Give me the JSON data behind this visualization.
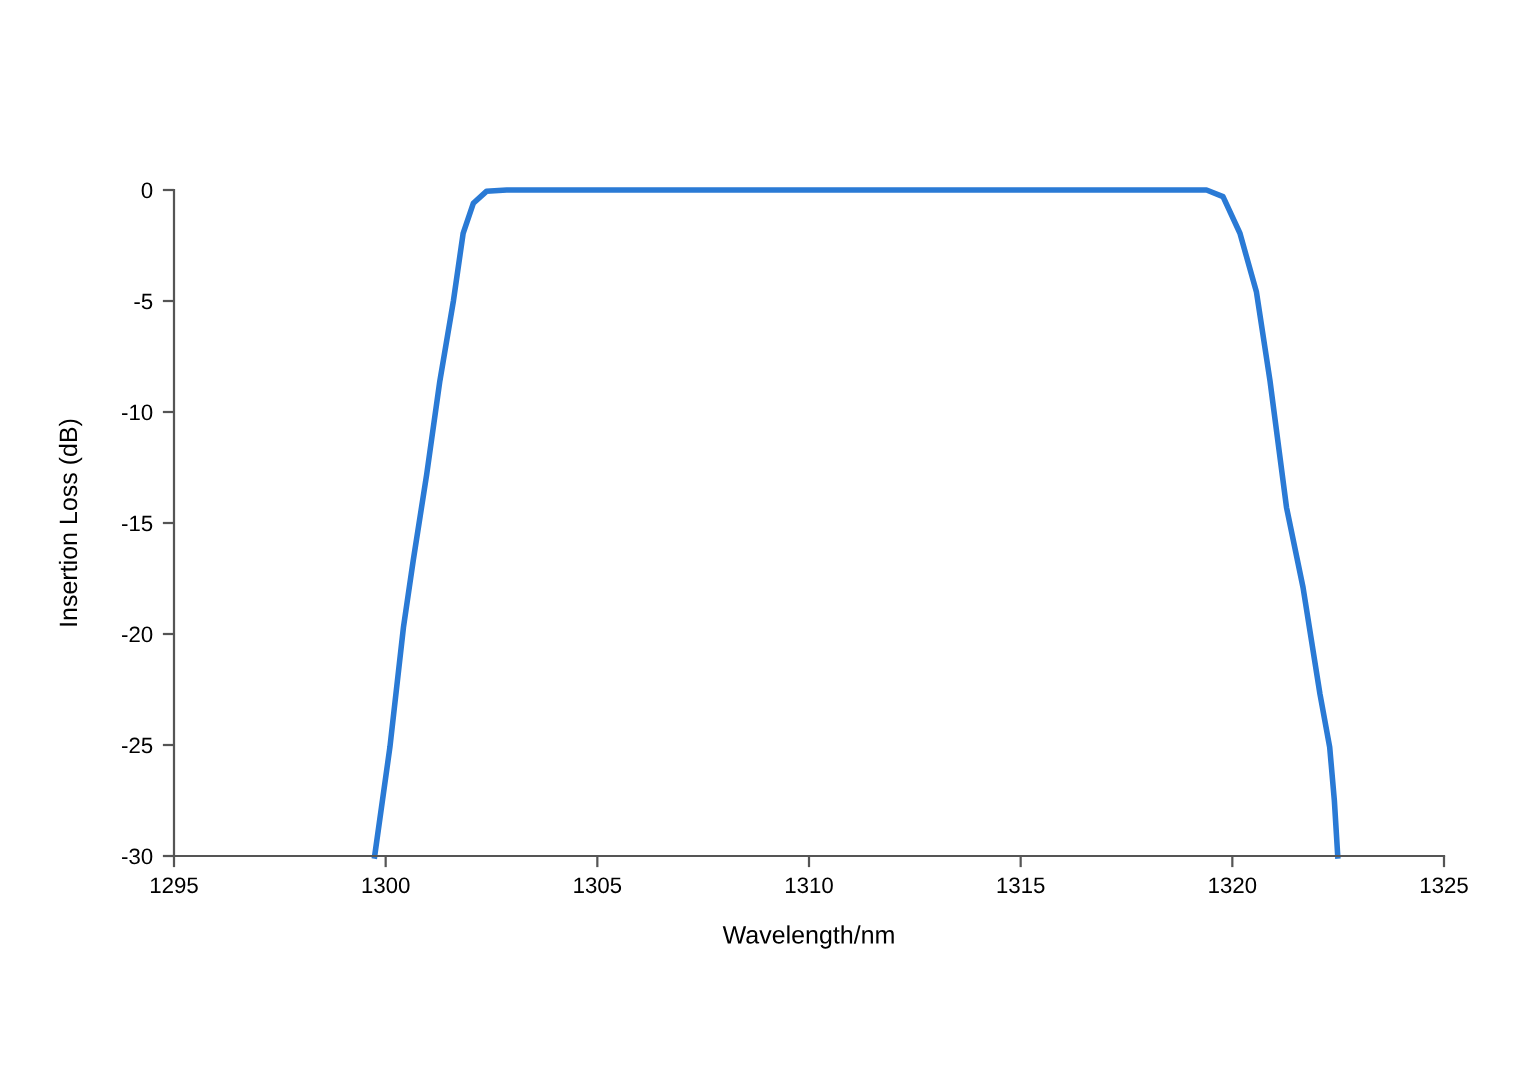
{
  "chart_data": {
    "type": "line",
    "xlabel": "Wavelength/nm",
    "ylabel": "Insertion Loss (dB)",
    "xlim": [
      1295,
      1325
    ],
    "xticks": [
      1295,
      1300,
      1305,
      1310,
      1315,
      1320,
      1325
    ],
    "ylim": [
      -30,
      0
    ],
    "yticks": [
      -30,
      -25,
      -20,
      -15,
      -10,
      -5,
      0
    ],
    "grid": false,
    "legend": false,
    "marker": "none",
    "line_style": "solid",
    "series": [
      {
        "color": "#2a7ad5",
        "x": [
          1299.74,
          1300.1,
          1300.42,
          1300.65,
          1300.97,
          1301.28,
          1301.6,
          1301.83,
          1302.07,
          1302.38,
          1302.86,
          1306,
          1310,
          1314,
          1318,
          1319.39,
          1319.78,
          1320.18,
          1320.57,
          1320.89,
          1321.28,
          1321.67,
          1322.07,
          1322.3,
          1322.41,
          1322.49
        ],
        "values": [
          -30,
          -25.1,
          -19.7,
          -16.7,
          -12.8,
          -8.6,
          -5.0,
          -1.95,
          -0.6,
          -0.06,
          0,
          0,
          0,
          0,
          0,
          0,
          -0.3,
          -1.95,
          -4.6,
          -8.6,
          -14.3,
          -17.9,
          -22.7,
          -25.1,
          -27.5,
          -30
        ]
      }
    ]
  }
}
